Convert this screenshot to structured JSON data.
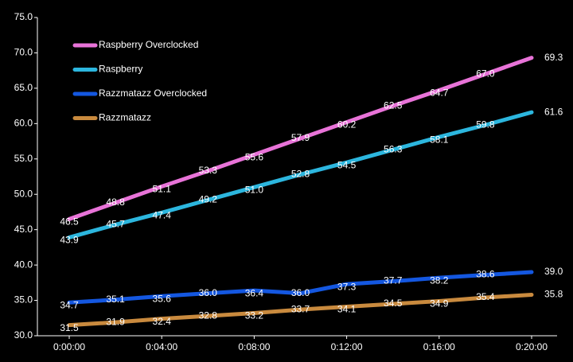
{
  "chart_data": {
    "type": "line",
    "categories": [
      "0:00:00",
      null,
      "0:04:00",
      null,
      "0:08:00",
      null,
      "0:12:00",
      null,
      "0:16:00",
      null,
      "0:20:00"
    ],
    "ylim": [
      30,
      75
    ],
    "yticks": [
      {
        "value": 30,
        "label": "30.0"
      },
      {
        "value": 35,
        "label": "35.0"
      },
      {
        "value": 40,
        "label": "40.0"
      },
      {
        "value": 45,
        "label": "45.0"
      },
      {
        "value": 50,
        "label": "50.0"
      },
      {
        "value": 55,
        "label": "55.0"
      },
      {
        "value": 60,
        "label": "60.0"
      },
      {
        "value": 65,
        "label": "65.0"
      },
      {
        "value": 70,
        "label": "70.0"
      },
      {
        "value": 75,
        "label": "75.0"
      }
    ],
    "grid": false,
    "legend": "upper left",
    "series": [
      {
        "name": "Raspberry Overclocked",
        "color": "#e873d8",
        "values": [
          46.5,
          48.8,
          51.1,
          53.3,
          55.6,
          57.9,
          60.2,
          62.5,
          64.7,
          67.0,
          69.3
        ],
        "value_labels": [
          "46.5",
          "48.8",
          "51.1",
          "53.3",
          "55.6",
          "57.9",
          "60.2",
          "62.5",
          "64.7",
          "67.0",
          "69.3"
        ]
      },
      {
        "name": "Raspberry",
        "color": "#2cb6de",
        "values": [
          43.9,
          45.7,
          47.4,
          49.2,
          51.0,
          52.8,
          54.5,
          56.3,
          58.1,
          59.8,
          61.6
        ],
        "value_labels": [
          "43.9",
          "45.7",
          "47.4",
          "49.2",
          "51.0",
          "52.8",
          "54.5",
          "56.3",
          "58.1",
          "59.8",
          "61.6"
        ]
      },
      {
        "name": "Razzmatazz Overclocked",
        "color": "#1457e0",
        "values": [
          34.7,
          35.1,
          35.6,
          36.0,
          36.4,
          36.0,
          37.3,
          37.7,
          38.2,
          38.6,
          39.0
        ],
        "value_labels": [
          "34.7",
          "35.1",
          "35.6",
          "36.0",
          "36.4",
          "36.0",
          "37.3",
          "37.7",
          "38.2",
          "38.6",
          "39.0"
        ]
      },
      {
        "name": "Razzmatazz",
        "color": "#c98a3e",
        "values": [
          31.5,
          31.9,
          32.4,
          32.8,
          33.2,
          33.7,
          34.1,
          34.5,
          34.9,
          35.4,
          35.8
        ],
        "value_labels": [
          "31.5",
          "31.9",
          "32.4",
          "32.8",
          "33.2",
          "33.7",
          "34.1",
          "34.5",
          "34.9",
          "35.4",
          "35.8"
        ]
      }
    ]
  }
}
